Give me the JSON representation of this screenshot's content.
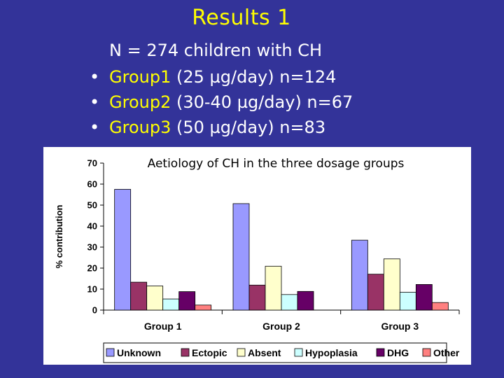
{
  "slide": {
    "title": "Results 1",
    "subtitle": "N = 274 children with CH",
    "bullets": [
      {
        "marker": "•",
        "group": "Group1",
        "rest": " (25 µg/day) n=124"
      },
      {
        "marker": "•",
        "group": "Group2",
        "rest": " (30-40 µg/day) n=67"
      },
      {
        "marker": "•",
        "group": "Group3",
        "rest": " (50 µg/day) n=83"
      }
    ]
  },
  "colors": {
    "background": "#333399",
    "title": "#ffff00",
    "text": "#ffffff"
  },
  "chart_data": {
    "type": "bar",
    "title": "Aetiology of CH in the three dosage groups",
    "xlabel": "",
    "ylabel": "% contribution",
    "ylim": [
      0,
      70
    ],
    "yticks": [
      0,
      10,
      20,
      30,
      40,
      50,
      60,
      70
    ],
    "grid": false,
    "legend": "bottom",
    "categories": [
      "Group 1",
      "Group 2",
      "Group 3"
    ],
    "series": [
      {
        "name": "Unknown",
        "color": "#9999ff",
        "values": [
          57.5,
          50.7,
          33.3
        ]
      },
      {
        "name": "Ectopic",
        "color": "#993366",
        "values": [
          13.3,
          11.9,
          17.1
        ]
      },
      {
        "name": "Absent",
        "color": "#ffffcc",
        "values": [
          11.5,
          20.9,
          24.4
        ]
      },
      {
        "name": "Hypoplasia",
        "color": "#ccffff",
        "values": [
          5.3,
          7.4,
          8.5
        ]
      },
      {
        "name": "DHG",
        "color": "#660066",
        "values": [
          8.8,
          8.9,
          12.2
        ]
      },
      {
        "name": "Other",
        "color": "#ff8080",
        "values": [
          2.4,
          0,
          3.6
        ]
      }
    ]
  }
}
